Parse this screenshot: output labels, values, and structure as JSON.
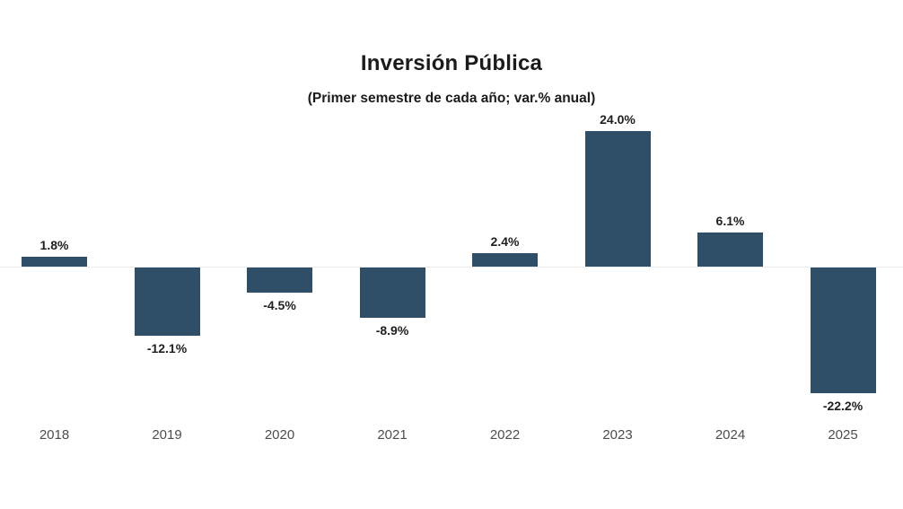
{
  "chart_data": {
    "type": "bar",
    "title": "Inversión Pública",
    "subtitle": "(Primer semestre de cada año; var.% anual)",
    "categories": [
      "2018",
      "2019",
      "2020",
      "2021",
      "2022",
      "2023",
      "2024",
      "2025"
    ],
    "values": [
      1.8,
      -12.1,
      -4.5,
      -8.9,
      2.4,
      24.0,
      6.1,
      -22.2
    ],
    "value_labels": [
      "1.8%",
      "-12.1%",
      "-4.5%",
      "-8.9%",
      "2.4%",
      "24.0%",
      "6.1%",
      "-22.2%"
    ],
    "bar_color": "#2f4e68",
    "baseline_color": "#ececec",
    "xlabel": "",
    "ylabel": "",
    "ylim": [
      -25,
      26
    ],
    "grid": false,
    "legend": false
  }
}
